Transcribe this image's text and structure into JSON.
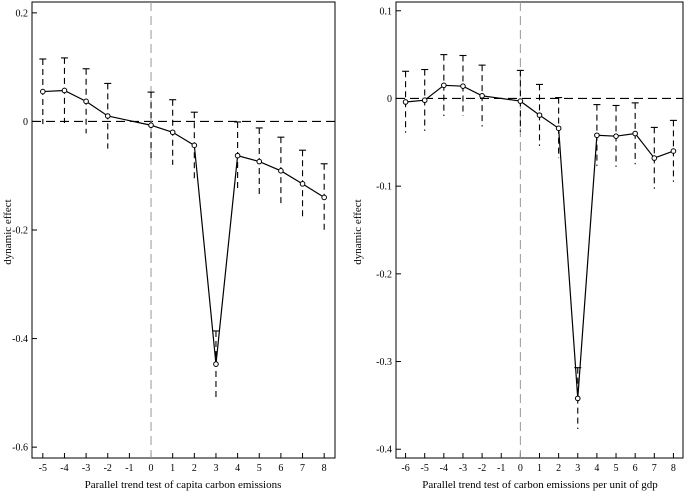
{
  "chart_data": [
    {
      "type": "line",
      "xlabel": "Parallel trend test of capita carbon emissions",
      "ylabel": "dynamic effect",
      "x": [
        -5,
        -4,
        -3,
        -2,
        -1,
        0,
        1,
        2,
        3,
        4,
        5,
        6,
        7,
        8
      ],
      "x_ticks": [
        -5,
        -4,
        -3,
        -2,
        -1,
        0,
        1,
        2,
        3,
        4,
        5,
        6,
        7,
        8
      ],
      "y_ticks": [
        0.2,
        0,
        -0.2,
        -0.4,
        -0.6
      ],
      "y_tick_labels": [
        "0.2",
        "0",
        "-0.2",
        "-0.4",
        "-0.6"
      ],
      "xlim": [
        -5.5,
        8.5
      ],
      "ylim": [
        -0.62,
        0.22
      ],
      "series": [
        {
          "values": [
            0.055,
            0.057,
            0.037,
            0.01,
            -0.007,
            -0.02,
            -0.044,
            -0.447,
            -0.063,
            -0.074,
            -0.091,
            -0.115,
            -0.14
          ],
          "x": [
            -5,
            -4,
            -3,
            -2,
            0,
            1,
            2,
            3,
            4,
            5,
            6,
            7,
            8
          ],
          "ci_low": [
            -0.005,
            -0.003,
            -0.022,
            -0.05,
            -0.068,
            -0.08,
            -0.105,
            -0.508,
            -0.125,
            -0.136,
            -0.153,
            -0.177,
            -0.202
          ],
          "ci_high": [
            0.115,
            0.117,
            0.097,
            0.07,
            0.054,
            0.04,
            0.017,
            -0.386,
            -0.001,
            -0.012,
            -0.029,
            -0.053,
            -0.078
          ]
        }
      ],
      "reference_lines": {
        "horizontal_y": 0,
        "vertical_x": 0
      },
      "grid": false,
      "legend": "none"
    },
    {
      "type": "line",
      "xlabel": "Parallel trend test of carbon emissions per unit of gdp",
      "ylabel": "dynamic effect",
      "x": [
        -6,
        -5,
        -4,
        -3,
        -2,
        -1,
        0,
        1,
        2,
        3,
        4,
        5,
        6,
        7,
        8
      ],
      "x_ticks": [
        -6,
        -5,
        -4,
        -3,
        -2,
        -1,
        0,
        1,
        2,
        3,
        4,
        5,
        6,
        7,
        8
      ],
      "y_ticks": [
        0.1,
        0,
        -0.1,
        -0.2,
        -0.3,
        -0.4
      ],
      "y_tick_labels": [
        "0.1",
        "0",
        "-0.1",
        "-0.2",
        "-0.3",
        "-0.4"
      ],
      "xlim": [
        -6.5,
        8.5
      ],
      "ylim": [
        -0.41,
        0.11
      ],
      "series": [
        {
          "values": [
            -0.004,
            -0.002,
            0.015,
            0.014,
            0.003,
            -0.003,
            -0.019,
            -0.034,
            -0.342,
            -0.042,
            -0.043,
            -0.04,
            -0.068,
            -0.06
          ],
          "x": [
            -6,
            -5,
            -4,
            -3,
            -2,
            0,
            1,
            2,
            3,
            4,
            5,
            6,
            7,
            8
          ],
          "ci_low": [
            -0.039,
            -0.037,
            -0.02,
            -0.02,
            -0.032,
            -0.038,
            -0.054,
            -0.068,
            -0.377,
            -0.077,
            -0.078,
            -0.075,
            -0.103,
            -0.095
          ],
          "ci_high": [
            0.031,
            0.033,
            0.05,
            0.049,
            0.038,
            0.032,
            0.016,
            0.001,
            -0.307,
            -0.007,
            -0.008,
            -0.005,
            -0.033,
            -0.025
          ]
        }
      ],
      "reference_lines": {
        "horizontal_y": 0,
        "vertical_x": 0
      },
      "grid": false,
      "legend": "none"
    }
  ]
}
